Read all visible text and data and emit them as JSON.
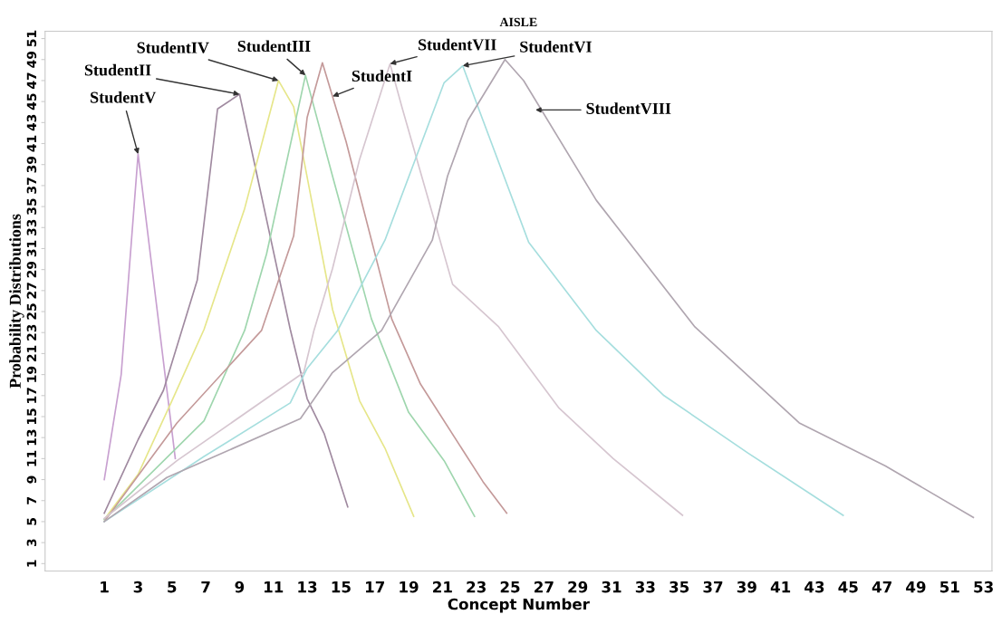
{
  "chart_data": {
    "type": "line",
    "title": "AISLE",
    "xlabel": "Concept Number",
    "ylabel": "Probability Distributions",
    "xlim": [
      -2.5,
      53.5
    ],
    "ylim": [
      0.3,
      51.7
    ],
    "xticks": [
      1,
      3,
      5,
      7,
      9,
      11,
      13,
      15,
      17,
      19,
      21,
      23,
      25,
      27,
      29,
      31,
      33,
      35,
      37,
      39,
      41,
      43,
      45,
      47,
      49,
      51,
      53
    ],
    "yticks": [
      1,
      3,
      5,
      7,
      9,
      11,
      13,
      15,
      17,
      19,
      21,
      23,
      25,
      27,
      29,
      31,
      33,
      35,
      37,
      39,
      41,
      43,
      45,
      47,
      49,
      51
    ],
    "grid": false,
    "legend": false,
    "marker": "none",
    "line_style": "solid",
    "series": [
      {
        "color": "#c8a0d0",
        "x": [
          1,
          2,
          3,
          5.2
        ],
        "values": [
          9,
          19,
          40,
          11
        ]
      },
      {
        "color": "#a08aa0",
        "x": [
          1,
          3,
          4.5,
          6.5,
          7.7,
          9,
          12,
          13,
          14,
          15.4
        ],
        "values": [
          5.8,
          12.8,
          17.5,
          28,
          44.3,
          45.7,
          23.3,
          16.7,
          13.4,
          6.4
        ]
      },
      {
        "color": "#e6e68a",
        "x": [
          1,
          3,
          5,
          6.9,
          9.3,
          11.3,
          12.2,
          14.5,
          16.1,
          17.6,
          19.3
        ],
        "values": [
          5.2,
          9.5,
          16.5,
          23.3,
          34.8,
          47,
          44.5,
          25.2,
          16.5,
          12,
          5.5
        ]
      },
      {
        "color": "#9fd6ae",
        "x": [
          1,
          6.9,
          9.3,
          10.6,
          12.9,
          14.5,
          16.8,
          19,
          21.1,
          22.9
        ],
        "values": [
          5.2,
          14.6,
          23.2,
          30.5,
          47.5,
          37.9,
          24.3,
          15.4,
          10.8,
          5.5
        ]
      },
      {
        "color": "#c49a9a",
        "x": [
          1,
          5.3,
          10.3,
          12.2,
          13,
          13.9,
          15.3,
          18,
          19.7,
          23.4,
          24.8
        ],
        "values": [
          5,
          14.4,
          23.2,
          32.2,
          43.5,
          48.7,
          41.2,
          24.3,
          18.1,
          8.8,
          5.8
        ]
      },
      {
        "color": "#d6c6d0",
        "x": [
          1,
          5.3,
          12.8,
          13.4,
          14.5,
          16.1,
          17.9,
          18.6,
          21.6,
          24.3,
          27.9,
          31.1,
          35.2
        ],
        "values": [
          5.3,
          10.8,
          19.2,
          23.2,
          29.1,
          39.5,
          48.6,
          44.5,
          27.6,
          23.6,
          15.8,
          11,
          5.6
        ]
      },
      {
        "color": "#a6dede",
        "x": [
          1,
          6.9,
          12,
          13,
          14.8,
          17.6,
          21.1,
          22.2,
          23.4,
          26.1,
          30.1,
          34.1,
          39.1,
          44.7
        ],
        "values": [
          5,
          11.2,
          16.3,
          19.6,
          23.2,
          31.8,
          46.8,
          48.4,
          43.2,
          31.6,
          23.2,
          17,
          11.5,
          5.6
        ]
      },
      {
        "color": "#b0a6b0",
        "x": [
          1,
          4.7,
          12.6,
          14.5,
          17.4,
          20.4,
          21.3,
          22.5,
          24.7,
          25.8,
          30.1,
          35.9,
          42.1,
          47.2,
          52.4
        ],
        "values": [
          5,
          9.2,
          14.8,
          19.2,
          23.2,
          31.8,
          37.9,
          43.2,
          49,
          47,
          35.6,
          23.6,
          14.4,
          10.3,
          5.4
        ]
      }
    ],
    "annotations": [
      {
        "text": "StudentV",
        "x": 3,
        "y": 40
      },
      {
        "text": "StudentII",
        "x": 9,
        "y": 45.7
      },
      {
        "text": "StudentIV",
        "x": 11.3,
        "y": 47
      },
      {
        "text": "StudentIII",
        "x": 12.9,
        "y": 47.5
      },
      {
        "text": "StudentI",
        "x": 14.5,
        "y": 45.5
      },
      {
        "text": "StudentVII",
        "x": 17.9,
        "y": 48.6
      },
      {
        "text": "StudentVI",
        "x": 22.2,
        "y": 48.4
      },
      {
        "text": "StudentVIII",
        "x": 26.5,
        "y": 44.2
      }
    ]
  }
}
